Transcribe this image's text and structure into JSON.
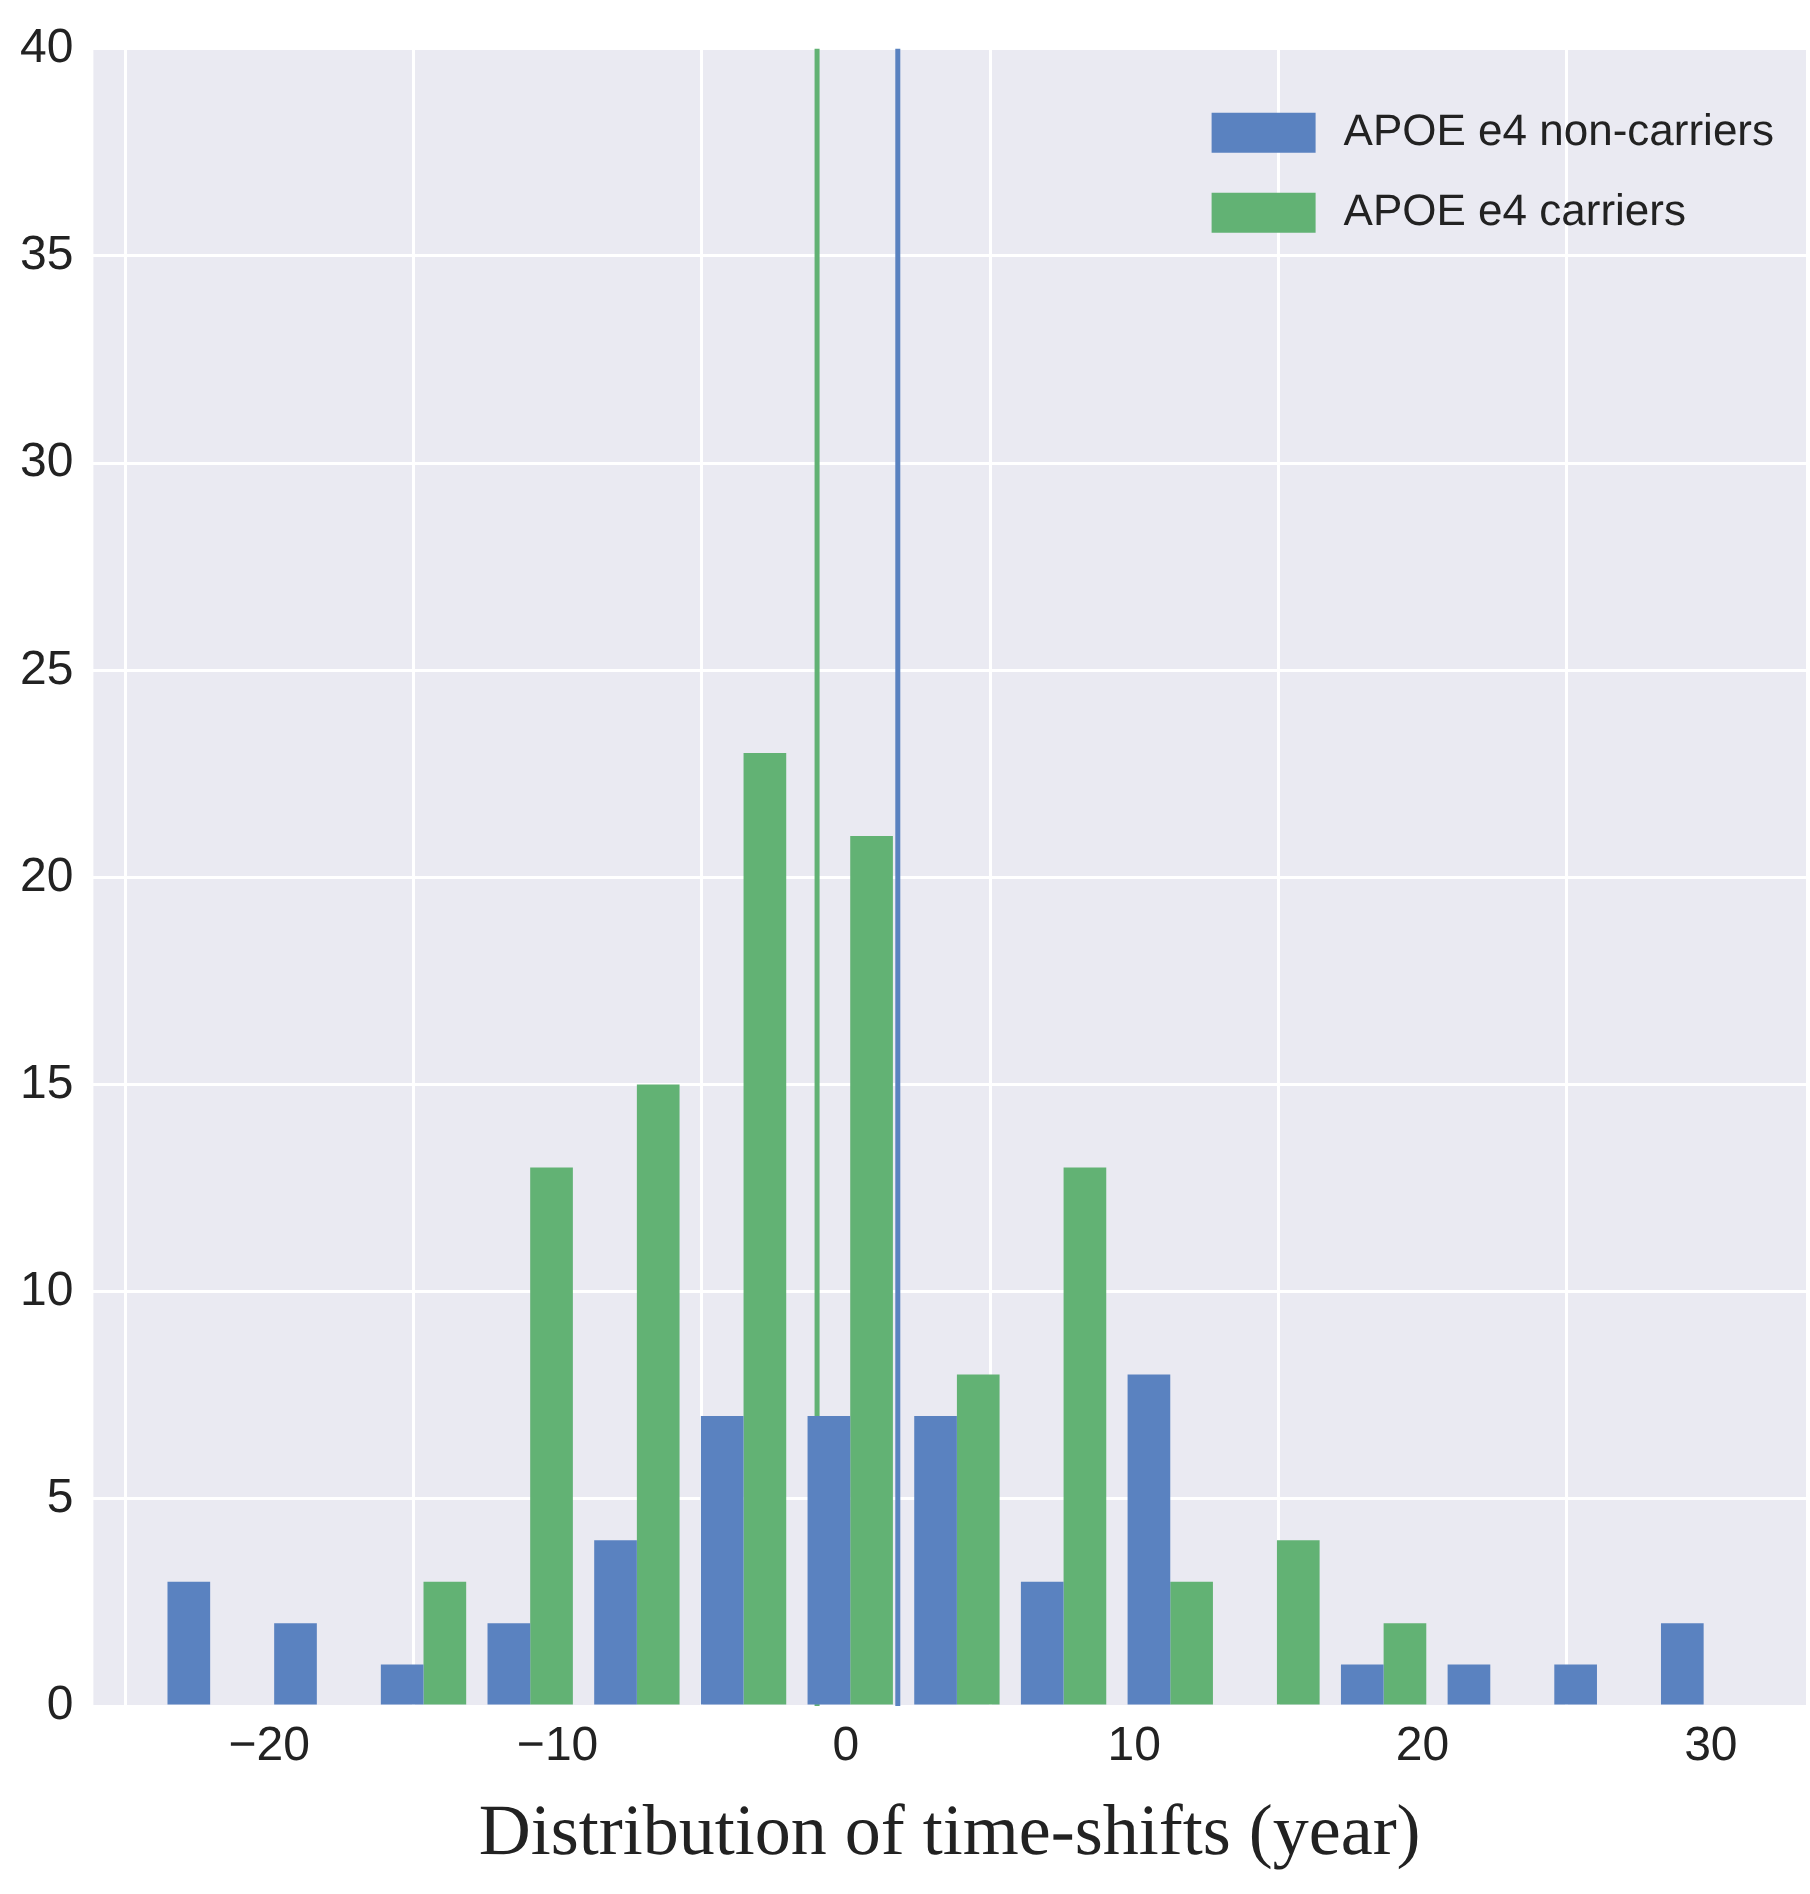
{
  "chart_data": {
    "type": "histogram",
    "xlabel": "Distribution of time-shifts (year)",
    "bins": [
      -23.9,
      -20.2,
      -16.5,
      -12.8,
      -9.1,
      -5.4,
      -1.7,
      2.0,
      5.7,
      9.4,
      13.1,
      16.8,
      20.5,
      24.2,
      27.9,
      31.6
    ],
    "series": [
      {
        "name": "APOE e4 non-carriers",
        "color": "#5a82c0",
        "values": [
          3,
          2,
          1,
          2,
          4,
          7,
          7,
          7,
          3,
          8,
          0,
          1,
          1,
          1,
          2
        ]
      },
      {
        "name": "APOE e4 carriers",
        "color": "#62b274",
        "values": [
          0,
          0,
          3,
          13,
          15,
          23,
          21,
          8,
          13,
          3,
          4,
          2,
          0,
          0,
          0
        ]
      }
    ],
    "xlim": [
      -26.1,
      33.3
    ],
    "xticks": [
      {
        "value": -20,
        "label": "−20"
      },
      {
        "value": -10,
        "label": "−10"
      },
      0,
      10,
      20,
      30
    ],
    "ylim": [
      0,
      40
    ],
    "yticks": [
      0,
      5,
      10,
      15,
      20,
      25,
      30,
      35,
      40
    ],
    "ref_lines": [
      {
        "axis": "x",
        "value": -1.0,
        "color": "#62b274"
      },
      {
        "axis": "x",
        "value": 1.8,
        "color": "#5a82c0"
      }
    ],
    "grid": true,
    "legend": "top right"
  }
}
